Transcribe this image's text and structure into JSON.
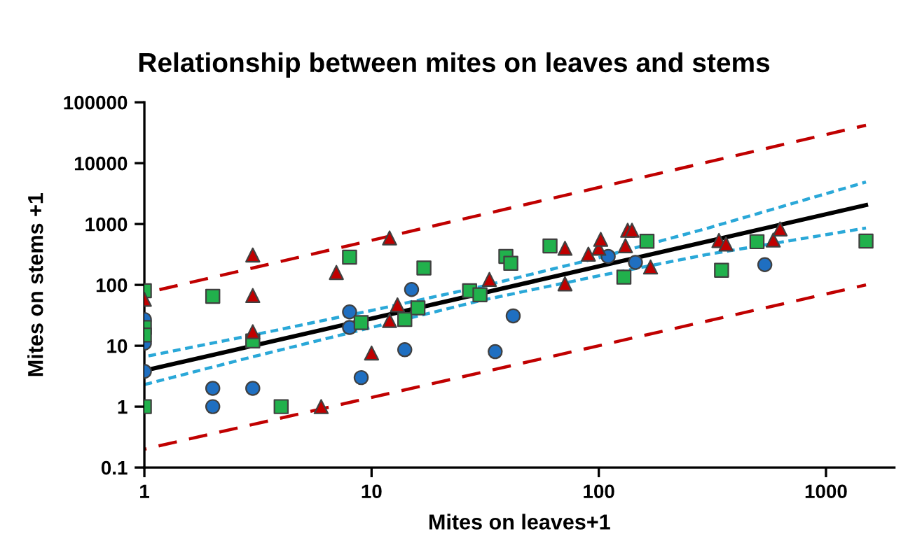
{
  "chart_data": {
    "type": "scatter",
    "title": "Relationship between mites on leaves and stems",
    "xlabel": "Mites on leaves+1",
    "ylabel": "Mites on stems +1",
    "log": "xy",
    "grid": false,
    "legend": false,
    "xlim": [
      1,
      2000
    ],
    "xticks": [
      1,
      10,
      100,
      1000
    ],
    "ylim": [
      0.1,
      100000
    ],
    "yticks": [
      {
        "value": 0.1,
        "label": "0.1"
      },
      1,
      10,
      100,
      1000,
      10000,
      100000
    ],
    "series": [
      {
        "type": "line",
        "color": "#c00000",
        "line_style": "dashed",
        "marker": "none",
        "x": [
          1,
          1500
        ],
        "values": [
          73,
          42000
        ]
      },
      {
        "type": "line",
        "color": "#c00000",
        "line_style": "dashed",
        "marker": "none",
        "x": [
          1,
          1500
        ],
        "values": [
          0.2,
          100
        ]
      },
      {
        "type": "line",
        "color": "#2aa8d8",
        "line_style": "dotted",
        "marker": "none",
        "x": [
          1,
          3,
          10,
          30,
          100,
          300,
          1500
        ],
        "values": [
          6.6,
          15,
          38,
          93,
          280,
          850,
          4900
        ]
      },
      {
        "type": "line",
        "color": "#2aa8d8",
        "line_style": "dotted",
        "marker": "none",
        "x": [
          1,
          3,
          10,
          30,
          100,
          300,
          1500
        ],
        "values": [
          2.3,
          6.6,
          20,
          55,
          141,
          316,
          860
        ]
      },
      {
        "type": "line",
        "color": "#000000",
        "line_style": "solid",
        "marker": "none",
        "x": [
          1,
          1500
        ],
        "values": [
          3.9,
          2050
        ]
      },
      {
        "color": "#1f6fc1",
        "marker": "circle",
        "x": [
          1,
          1,
          1,
          2,
          2,
          3,
          8,
          8,
          9,
          14,
          15,
          35,
          42,
          110,
          145,
          538
        ],
        "values": [
          27,
          11,
          3.8,
          2,
          1,
          2,
          36,
          20,
          3,
          8.6,
          84,
          8,
          31,
          294,
          234,
          215
        ]
      },
      {
        "color": "#21b14c",
        "marker": "square",
        "x": [
          1,
          1,
          1,
          1,
          2,
          3,
          4,
          8,
          9,
          14,
          16,
          17,
          27,
          30,
          39,
          41,
          61,
          129,
          163,
          347,
          497,
          1500
        ],
        "values": [
          80,
          20,
          15,
          1,
          65,
          12,
          1,
          285,
          24,
          27,
          42,
          190,
          80,
          69,
          294,
          226,
          437,
          134,
          521,
          174,
          513,
          525
        ]
      },
      {
        "color": "#c00000",
        "marker": "triangle",
        "x": [
          1,
          3,
          3,
          3,
          7,
          12,
          10,
          6,
          13,
          12,
          33,
          71,
          71,
          90,
          100,
          102,
          131,
          134,
          140,
          169,
          338,
          363,
          586,
          628
        ],
        "values": [
          58,
          310,
          67,
          17,
          160,
          590,
          7.6,
          1,
          47,
          26,
          123,
          400,
          104,
          320,
          400,
          560,
          440,
          790,
          790,
          197,
          537,
          470,
          545,
          830
        ]
      }
    ]
  }
}
